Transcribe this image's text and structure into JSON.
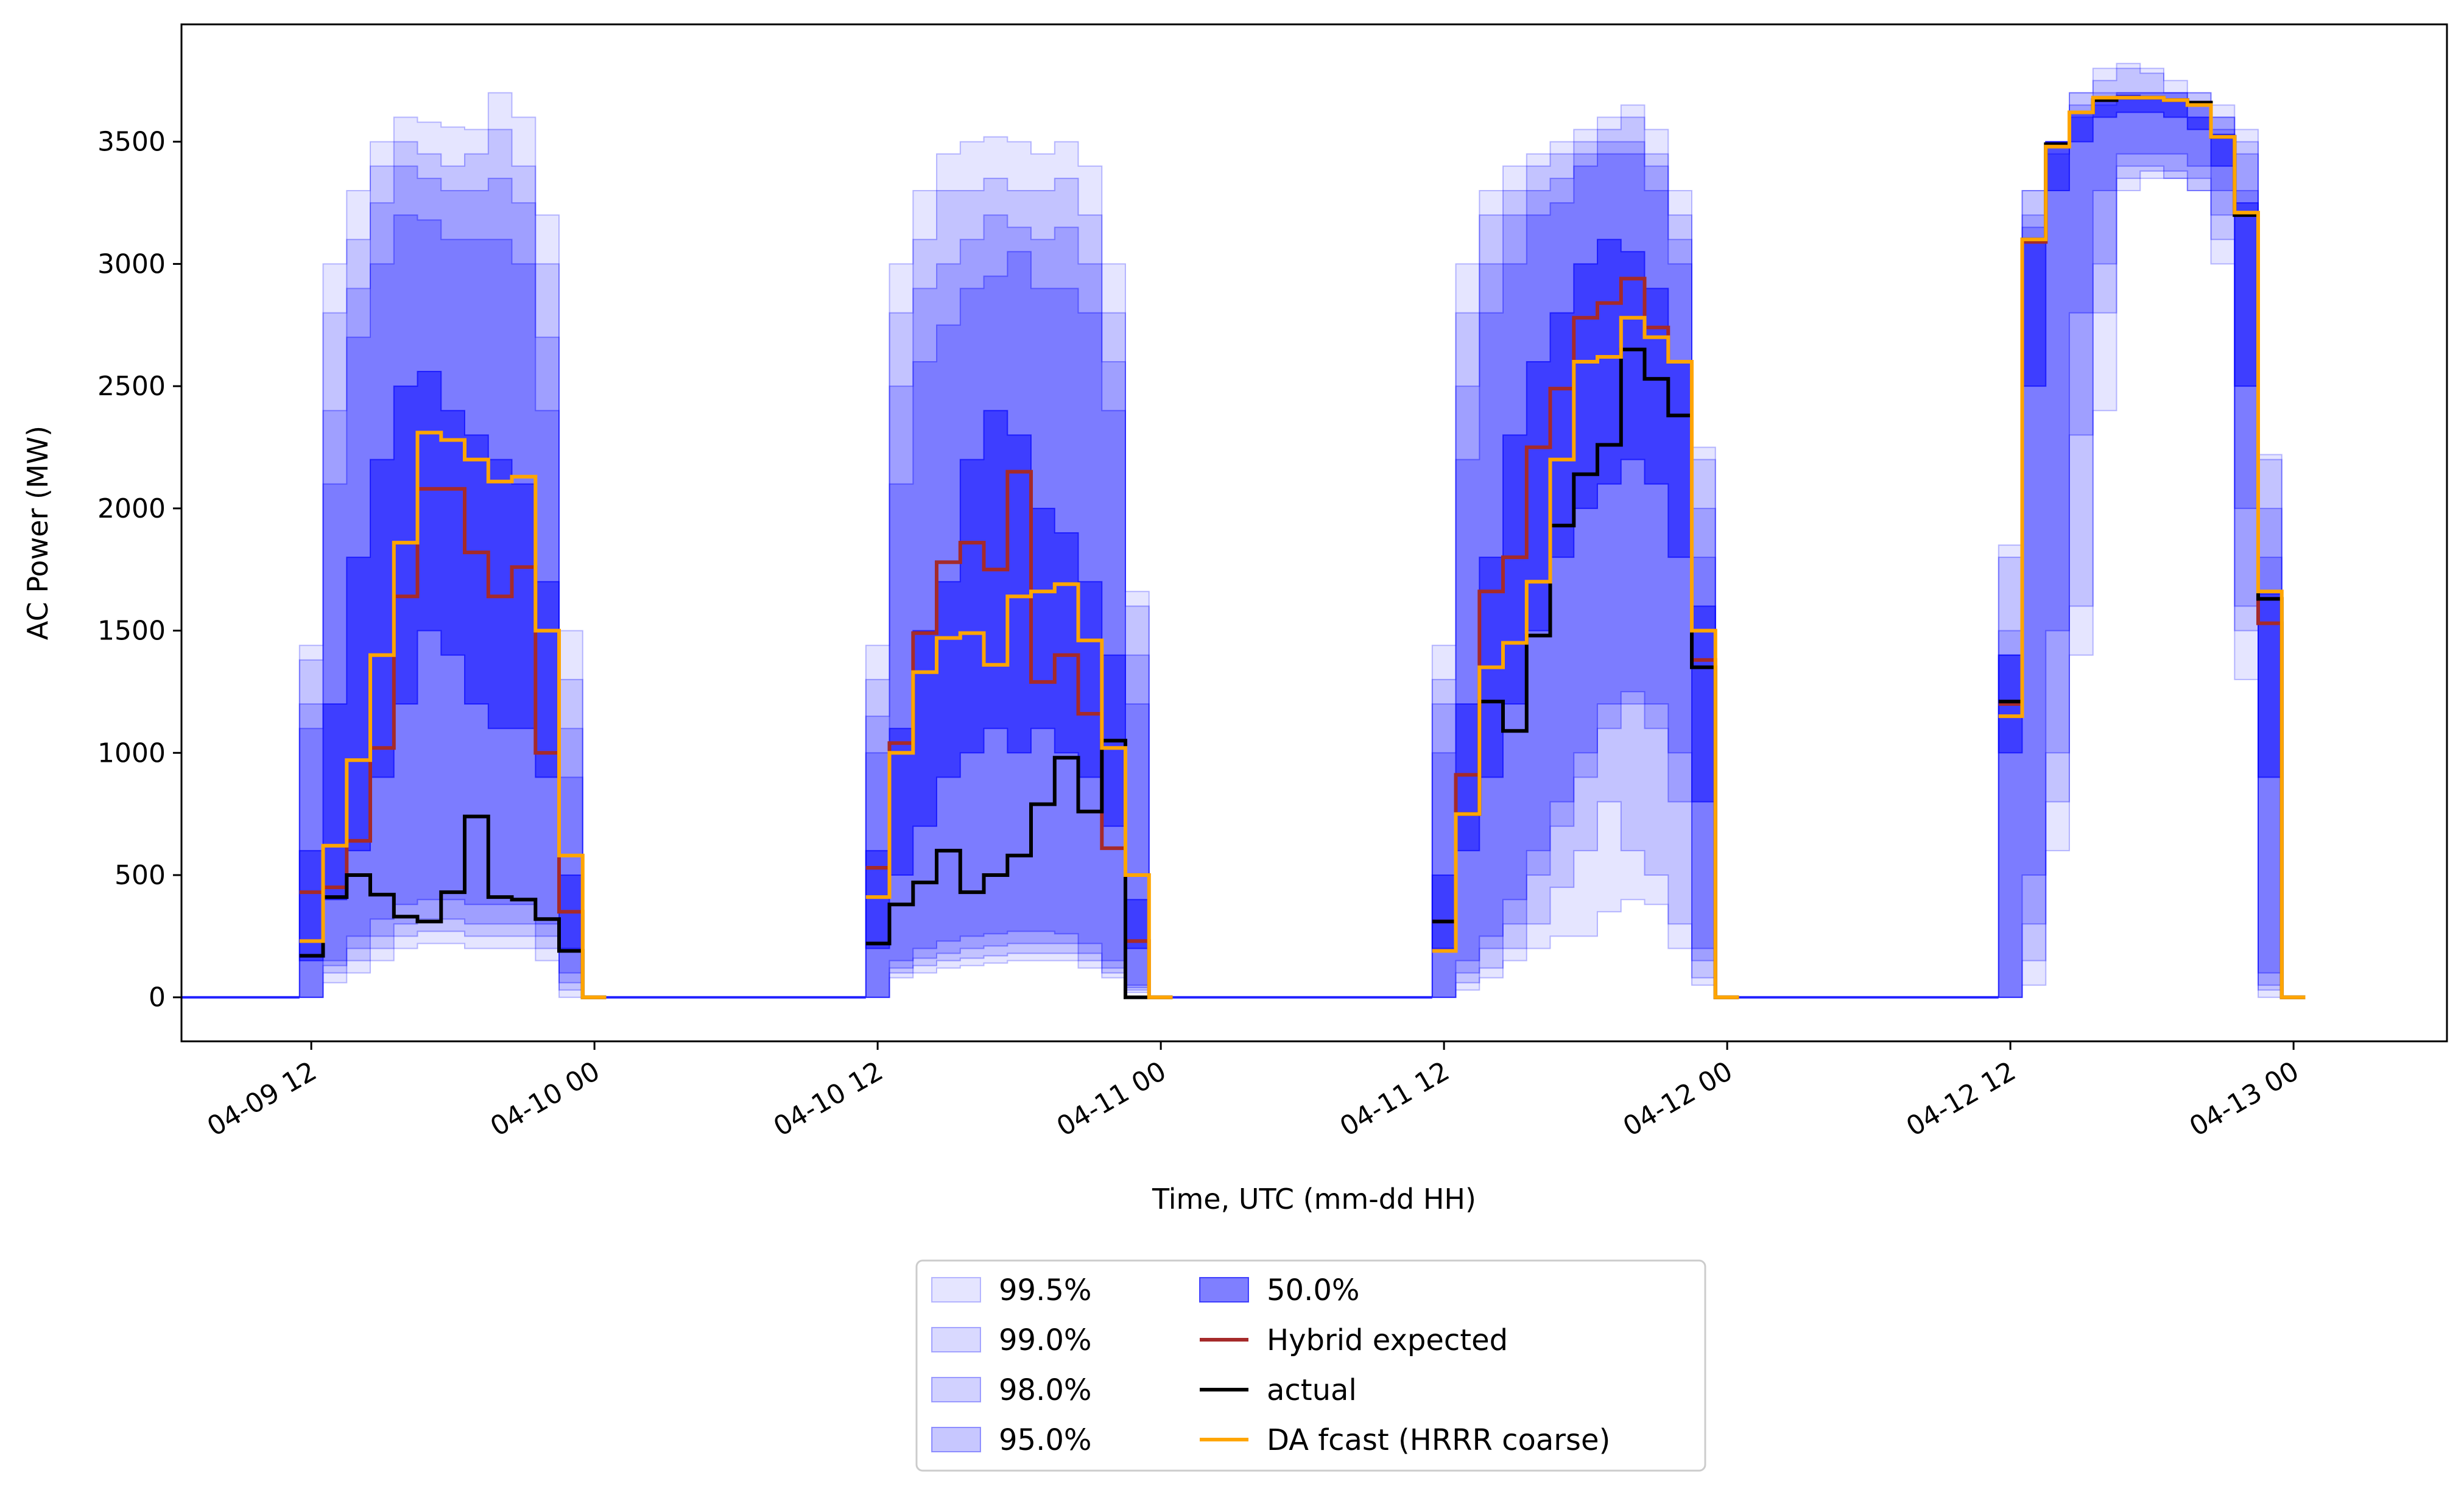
{
  "chart_data": {
    "type": "area",
    "title": "",
    "xlabel": "Time, UTC (mm-dd HH)",
    "ylabel": "AC Power (MW)",
    "x_unit": "hours since 04-09 00 UTC",
    "xlim": [
      6.5,
      102.5
    ],
    "ylim": [
      -180,
      3980
    ],
    "yticks": [
      0,
      500,
      1000,
      1500,
      2000,
      2500,
      3000,
      3500
    ],
    "xticks": [
      {
        "x": 12,
        "label": "04-09 12"
      },
      {
        "x": 24,
        "label": "04-10 00"
      },
      {
        "x": 36,
        "label": "04-10 12"
      },
      {
        "x": 48,
        "label": "04-11 00"
      },
      {
        "x": 60,
        "label": "04-11 12"
      },
      {
        "x": 72,
        "label": "04-12 00"
      },
      {
        "x": 84,
        "label": "04-12 12"
      },
      {
        "x": 96,
        "label": "04-13 00"
      }
    ],
    "grid": false,
    "legend_position": "bottom-center",
    "days": [
      {
        "start": 11.5,
        "step": 1,
        "n": 13,
        "band_99_5": {
          "lo": [
            0,
            60,
            100,
            150,
            200,
            220,
            220,
            200,
            200,
            200,
            150,
            0,
            0
          ],
          "hi": [
            1440,
            3000,
            3300,
            3500,
            3600,
            3580,
            3560,
            3550,
            3700,
            3600,
            3200,
            1500,
            0
          ]
        },
        "band_99": {
          "lo": [
            0,
            100,
            150,
            200,
            250,
            270,
            270,
            250,
            250,
            250,
            200,
            30,
            0
          ],
          "hi": [
            1380,
            2800,
            3100,
            3400,
            3500,
            3450,
            3400,
            3450,
            3550,
            3400,
            3000,
            1300,
            0
          ]
        },
        "band_98": {
          "lo": [
            0,
            130,
            200,
            250,
            300,
            320,
            320,
            300,
            300,
            300,
            250,
            60,
            0
          ],
          "hi": [
            1200,
            2400,
            2900,
            3250,
            3400,
            3350,
            3300,
            3300,
            3350,
            3250,
            2700,
            1100,
            0
          ]
        },
        "band_95": {
          "lo": [
            0,
            150,
            250,
            320,
            380,
            400,
            400,
            380,
            380,
            380,
            300,
            100,
            0
          ],
          "hi": [
            1100,
            2100,
            2700,
            3000,
            3200,
            3180,
            3100,
            3100,
            3100,
            3000,
            2400,
            900,
            0
          ]
        },
        "band_50": {
          "lo": [
            150,
            400,
            600,
            900,
            1200,
            1500,
            1400,
            1200,
            1100,
            1100,
            900,
            200,
            0
          ],
          "hi": [
            600,
            1200,
            1800,
            2200,
            2500,
            2560,
            2400,
            2300,
            2200,
            2100,
            1700,
            500,
            0
          ]
        },
        "hybrid": [
          430,
          450,
          640,
          1020,
          1640,
          2080,
          2080,
          1820,
          1640,
          1760,
          1000,
          350,
          0
        ],
        "actual": [
          170,
          410,
          500,
          420,
          330,
          310,
          430,
          740,
          410,
          400,
          320,
          190,
          0
        ],
        "da_fcast": [
          230,
          620,
          970,
          1400,
          1860,
          2310,
          2280,
          2200,
          2110,
          2130,
          1500,
          580,
          0
        ]
      },
      {
        "start": 35.5,
        "step": 1,
        "n": 13,
        "band_99_5": {
          "lo": [
            0,
            80,
            100,
            120,
            130,
            140,
            150,
            150,
            150,
            120,
            80,
            20,
            0
          ],
          "hi": [
            1440,
            3000,
            3300,
            3450,
            3500,
            3520,
            3500,
            3450,
            3500,
            3400,
            3000,
            1660,
            0
          ]
        },
        "band_99": {
          "lo": [
            0,
            100,
            130,
            150,
            160,
            170,
            180,
            180,
            180,
            150,
            100,
            30,
            0
          ],
          "hi": [
            1300,
            2800,
            3100,
            3300,
            3300,
            3350,
            3300,
            3300,
            3350,
            3200,
            2800,
            1600,
            0
          ]
        },
        "band_98": {
          "lo": [
            0,
            120,
            160,
            180,
            200,
            210,
            220,
            220,
            220,
            180,
            120,
            40,
            0
          ],
          "hi": [
            1150,
            2500,
            2900,
            3000,
            3100,
            3200,
            3150,
            3100,
            3150,
            3000,
            2600,
            1400,
            0
          ]
        },
        "band_95": {
          "lo": [
            0,
            150,
            200,
            230,
            250,
            260,
            270,
            270,
            260,
            220,
            150,
            50,
            0
          ],
          "hi": [
            1000,
            2100,
            2600,
            2750,
            2900,
            2950,
            3050,
            2900,
            2900,
            2800,
            2400,
            1200,
            0
          ]
        },
        "band_50": {
          "lo": [
            200,
            500,
            700,
            900,
            1000,
            1100,
            1000,
            1100,
            1000,
            900,
            700,
            200,
            0
          ],
          "hi": [
            600,
            1100,
            1500,
            1700,
            2200,
            2400,
            2300,
            2000,
            1900,
            1700,
            1400,
            400,
            0
          ]
        },
        "hybrid": [
          530,
          1040,
          1490,
          1780,
          1860,
          1750,
          2150,
          1290,
          1400,
          1160,
          610,
          230,
          0
        ],
        "actual": [
          220,
          380,
          470,
          600,
          430,
          500,
          580,
          790,
          980,
          760,
          1050,
          0,
          0
        ],
        "da_fcast": [
          410,
          1000,
          1330,
          1470,
          1490,
          1360,
          1640,
          1660,
          1690,
          1460,
          1020,
          500,
          0
        ]
      },
      {
        "start": 59.5,
        "step": 1,
        "n": 13,
        "band_99_5": {
          "lo": [
            0,
            30,
            80,
            150,
            200,
            250,
            250,
            350,
            400,
            380,
            200,
            50,
            0
          ],
          "hi": [
            1440,
            3000,
            3300,
            3400,
            3450,
            3500,
            3550,
            3600,
            3650,
            3550,
            3300,
            2250,
            0
          ]
        },
        "band_99": {
          "lo": [
            0,
            60,
            120,
            200,
            300,
            450,
            600,
            800,
            600,
            500,
            300,
            80,
            0
          ],
          "hi": [
            1300,
            2800,
            3200,
            3300,
            3400,
            3450,
            3500,
            3550,
            3600,
            3450,
            3200,
            2200,
            0
          ]
        },
        "band_98": {
          "lo": [
            0,
            100,
            200,
            300,
            500,
            700,
            900,
            1100,
            1200,
            1100,
            800,
            150,
            0
          ],
          "hi": [
            1200,
            2500,
            3000,
            3200,
            3300,
            3350,
            3450,
            3500,
            3500,
            3400,
            3100,
            2000,
            0
          ]
        },
        "band_95": {
          "lo": [
            0,
            150,
            250,
            400,
            600,
            800,
            1000,
            1200,
            1250,
            1200,
            1000,
            200,
            0
          ],
          "hi": [
            1000,
            2200,
            2800,
            3000,
            3200,
            3250,
            3400,
            3450,
            3450,
            3300,
            3000,
            1800,
            0
          ]
        },
        "band_50": {
          "lo": [
            200,
            600,
            900,
            1200,
            1500,
            1800,
            2000,
            2100,
            2200,
            2100,
            1800,
            800,
            0
          ],
          "hi": [
            500,
            1200,
            1800,
            2300,
            2600,
            2800,
            3000,
            3100,
            3050,
            2900,
            2600,
            1600,
            0
          ]
        },
        "hybrid": [
          310,
          910,
          1660,
          1800,
          2250,
          2490,
          2780,
          2840,
          2940,
          2740,
          2600,
          1380,
          0
        ],
        "actual": [
          310,
          750,
          1210,
          1090,
          1480,
          1930,
          2140,
          2260,
          2650,
          2530,
          2380,
          1350,
          0
        ],
        "da_fcast": [
          190,
          750,
          1350,
          1450,
          1700,
          2200,
          2600,
          2620,
          2780,
          2700,
          2600,
          1500,
          0
        ]
      },
      {
        "start": 83.5,
        "step": 1,
        "n": 13,
        "band_99_5": {
          "lo": [
            0,
            50,
            600,
            1400,
            2400,
            3300,
            3350,
            3350,
            3300,
            3000,
            1300,
            0,
            0
          ],
          "hi": [
            1850,
            3300,
            3500,
            3700,
            3800,
            3820,
            3800,
            3750,
            3700,
            3650,
            3550,
            2220,
            0
          ]
        },
        "band_99": {
          "lo": [
            0,
            150,
            800,
            1600,
            2800,
            3350,
            3380,
            3350,
            3300,
            3100,
            1500,
            30,
            0
          ],
          "hi": [
            1800,
            3300,
            3500,
            3700,
            3750,
            3800,
            3780,
            3700,
            3700,
            3600,
            3500,
            2200,
            0
          ]
        },
        "band_98": {
          "lo": [
            0,
            300,
            1000,
            2300,
            3000,
            3400,
            3400,
            3380,
            3350,
            3200,
            1600,
            50,
            0
          ],
          "hi": [
            1500,
            3200,
            3500,
            3650,
            3700,
            3700,
            3700,
            3700,
            3650,
            3600,
            3450,
            2000,
            0
          ]
        },
        "band_95": {
          "lo": [
            0,
            500,
            1500,
            2800,
            3300,
            3450,
            3450,
            3450,
            3400,
            3300,
            2000,
            100,
            0
          ],
          "hi": [
            1400,
            3150,
            3450,
            3600,
            3650,
            3700,
            3700,
            3700,
            3650,
            3550,
            3300,
            1800,
            0
          ]
        },
        "band_50": {
          "lo": [
            1000,
            2500,
            3300,
            3500,
            3600,
            3620,
            3620,
            3600,
            3550,
            3400,
            2500,
            900,
            0
          ],
          "hi": [
            1400,
            3100,
            3500,
            3620,
            3680,
            3690,
            3680,
            3670,
            3600,
            3530,
            3250,
            1650,
            0
          ]
        },
        "hybrid": [
          1200,
          3090,
          3480,
          3620,
          3670,
          3680,
          3680,
          3670,
          3650,
          3520,
          3200,
          1530,
          0
        ],
        "actual": [
          1210,
          3100,
          3490,
          3620,
          3670,
          3680,
          3680,
          3670,
          3660,
          3520,
          3200,
          1630,
          0
        ],
        "da_fcast": [
          1150,
          3100,
          3480,
          3620,
          3680,
          3680,
          3680,
          3670,
          3650,
          3520,
          3210,
          1660,
          0
        ]
      }
    ],
    "series": [
      {
        "name": "99.5%",
        "kind": "band",
        "key": "band_99_5",
        "color": "#0000ff",
        "opacity": 0.1
      },
      {
        "name": "99.0%",
        "kind": "band",
        "key": "band_99",
        "color": "#0000ff",
        "opacity": 0.15
      },
      {
        "name": "98.0%",
        "kind": "band",
        "key": "band_98",
        "color": "#0000ff",
        "opacity": 0.18
      },
      {
        "name": "95.0%",
        "kind": "band",
        "key": "band_95",
        "color": "#0000ff",
        "opacity": 0.22
      },
      {
        "name": "50.0%",
        "kind": "band",
        "key": "band_50",
        "color": "#0000ff",
        "opacity": 0.5
      },
      {
        "name": "Hybrid expected",
        "kind": "line",
        "key": "hybrid",
        "color": "#a52a2a"
      },
      {
        "name": "actual",
        "kind": "line",
        "key": "actual",
        "color": "#000000"
      },
      {
        "name": "DA fcast (HRRR coarse)",
        "kind": "line",
        "key": "da_fcast",
        "color": "#ffa500"
      }
    ]
  }
}
